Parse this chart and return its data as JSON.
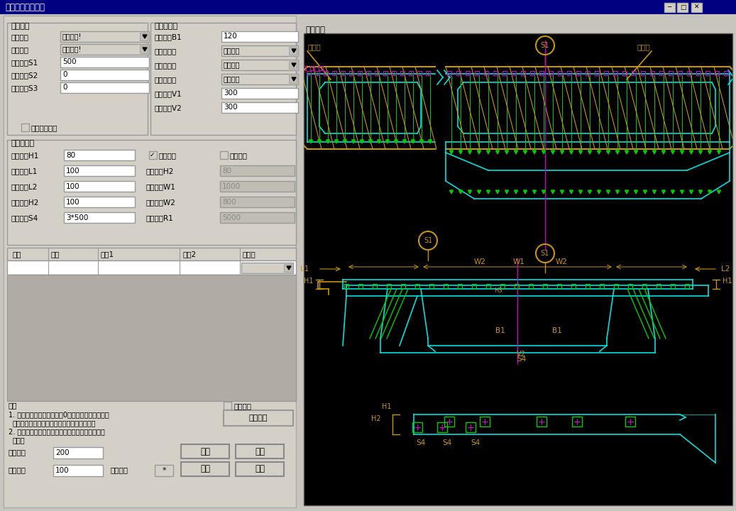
{
  "title": "钢束横竖向预应力",
  "win_bg": "#c0c0c0",
  "panel_bg": "#d4d0c8",
  "titlebar_color": "#000080",
  "cyan": "#00e0e0",
  "green": "#00cc00",
  "gold": "#c8960c",
  "magenta": "#cc00cc",
  "left_panel": {
    "sec1_label": "间距布置",
    "sec2_label": "竖向预应力",
    "sec3_label": "横向预应力",
    "tuxian_label": "图形显示",
    "row1_labels": [
      "钢束定义",
      "间距控制",
      "布置间距S1",
      "间距偏移S2",
      "插入偏移S3"
    ],
    "row1_dd": [
      "横竖向钢!",
      "输入竖向!"
    ],
    "row1_inputs": [
      "500",
      "0",
      "0"
    ],
    "checkbox1": "自动错开布置",
    "row2_labels": [
      "外侧距离B1",
      "宽腹板布置",
      "窄腹板布置",
      "变厚段控制",
      "上端距离V1",
      "下端距离V2"
    ],
    "row2_vals": [
      "120",
      "两根布置!",
      "单根布置!",
      "保持边距!",
      "300",
      "300"
    ],
    "row3_labels_l": [
      "钢束高度H1",
      "张拉距离L1",
      "锚固距离L2",
      "槽口钢束H2",
      "槽口钢束S4"
    ],
    "row3_vals_l": [
      "80",
      "100",
      "100",
      "100",
      "3*500"
    ],
    "row3_checks": [
      "单端张拉",
      "中间下弯"
    ],
    "row3_labels_r": [
      "下弯高度H2",
      "下弯平段W1",
      "下弯过渡W2",
      "下弯半径R1"
    ],
    "row3_vals_r": [
      "80",
      "1000",
      "800",
      "5000"
    ],
    "table_cols": [
      "跨号",
      "节段",
      "间距1",
      "间距2",
      "竖向束"
    ],
    "note_lines": [
      "注：",
      "1. 输入间距为节段施工时近0号块侧起的布置距离，",
      "   根据间距控制区分控制竖向还是横向预应力；",
      "2. 节段长度一致时才可合并输入，否则布置可能不",
      "   匹配。"
    ],
    "btn_apply": "应用表格",
    "btn_update": "更新表格",
    "lbl_lm": "立面比例",
    "lbl_dm": "断面比例",
    "val_lm": "200",
    "val_dm": "100",
    "btn_ok": "确定",
    "btn_cancel": "取消",
    "btn_open": "打开",
    "btn_save": "保存",
    "lbl_out": "输出图纸"
  }
}
